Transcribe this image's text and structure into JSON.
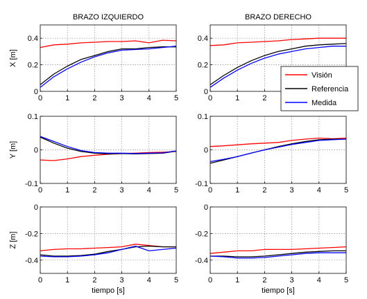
{
  "chart_data": {
    "type": "line",
    "xlim": [
      0,
      5
    ],
    "xticks": [
      "0",
      "1",
      "2",
      "3",
      "4",
      "5"
    ],
    "grid": true,
    "legend": {
      "placement": "inside right, upper-right panel (BRAZO DERECHO, X)",
      "entries": [
        {
          "label": "Visión",
          "color": "#ff0000"
        },
        {
          "label": "Referencia",
          "color": "#000000"
        },
        {
          "label": "Medida",
          "color": "#0000ff"
        }
      ]
    },
    "columns": [
      {
        "title": "BRAZO IZQUIERDO"
      },
      {
        "title": "BRAZO DERECHO"
      }
    ],
    "rows": [
      {
        "ylabel": "X [m]",
        "ylim": [
          0,
          0.5
        ],
        "yticks": [
          0,
          0.2,
          0.4
        ],
        "ytick_labels": [
          "0",
          "0.2",
          "0.4"
        ]
      },
      {
        "ylabel": "Y [m]",
        "ylim": [
          -0.1,
          0.1
        ],
        "yticks": [
          -0.1,
          0,
          0.1
        ],
        "ytick_labels": [
          "-0.1",
          "0",
          "0.1"
        ]
      },
      {
        "ylabel": "Z [m]",
        "ylim": [
          -0.5,
          0
        ],
        "yticks": [
          -0.4,
          -0.2,
          0
        ],
        "ytick_labels": [
          "-0.4",
          "-0.2",
          "0"
        ]
      }
    ],
    "xlabel": "tiempo [s]",
    "x": [
      0,
      0.5,
      1,
      1.5,
      2,
      2.5,
      3,
      3.5,
      4,
      4.5,
      5
    ],
    "panels": [
      {
        "row": 0,
        "col": 0,
        "series": [
          {
            "legend_index": 0,
            "values": [
              0.33,
              0.35,
              0.355,
              0.365,
              0.37,
              0.375,
              0.375,
              0.38,
              0.365,
              0.385,
              0.38
            ]
          },
          {
            "legend_index": 1,
            "values": [
              0.05,
              0.13,
              0.19,
              0.24,
              0.27,
              0.3,
              0.32,
              0.32,
              0.33,
              0.335,
              0.335
            ]
          },
          {
            "legend_index": 2,
            "values": [
              0.03,
              0.11,
              0.17,
              0.22,
              0.26,
              0.29,
              0.31,
              0.315,
              0.32,
              0.33,
              0.34
            ]
          }
        ]
      },
      {
        "row": 0,
        "col": 1,
        "series": [
          {
            "legend_index": 0,
            "values": [
              0.345,
              0.35,
              0.365,
              0.37,
              0.375,
              0.38,
              0.39,
              0.395,
              0.4,
              0.4,
              0.4
            ]
          },
          {
            "legend_index": 1,
            "values": [
              0.05,
              0.12,
              0.18,
              0.23,
              0.27,
              0.3,
              0.32,
              0.34,
              0.35,
              0.355,
              0.36
            ]
          },
          {
            "legend_index": 2,
            "values": [
              0.03,
              0.1,
              0.16,
              0.21,
              0.25,
              0.28,
              0.3,
              0.32,
              0.33,
              0.34,
              0.34
            ]
          }
        ]
      },
      {
        "row": 1,
        "col": 0,
        "series": [
          {
            "legend_index": 0,
            "values": [
              -0.03,
              -0.032,
              -0.027,
              -0.02,
              -0.016,
              -0.013,
              -0.011,
              -0.01,
              -0.008,
              -0.007,
              -0.005
            ]
          },
          {
            "legend_index": 1,
            "values": [
              0.038,
              0.02,
              0.005,
              -0.005,
              -0.01,
              -0.012,
              -0.011,
              -0.012,
              -0.011,
              -0.01,
              -0.004
            ]
          },
          {
            "legend_index": 2,
            "values": [
              0.04,
              0.025,
              0.01,
              -0.002,
              -0.008,
              -0.01,
              -0.01,
              -0.011,
              -0.01,
              -0.009,
              -0.003
            ]
          }
        ]
      },
      {
        "row": 1,
        "col": 1,
        "series": [
          {
            "legend_index": 0,
            "values": [
              0.01,
              0.012,
              0.015,
              0.018,
              0.02,
              0.022,
              0.028,
              0.032,
              0.035,
              0.033,
              0.035
            ]
          },
          {
            "legend_index": 1,
            "values": [
              -0.04,
              -0.03,
              -0.02,
              -0.01,
              0.0,
              0.01,
              0.018,
              0.025,
              0.03,
              0.032,
              0.032
            ]
          },
          {
            "legend_index": 2,
            "values": [
              -0.035,
              -0.028,
              -0.02,
              -0.01,
              0.0,
              0.008,
              0.016,
              0.022,
              0.028,
              0.03,
              0.032
            ]
          }
        ]
      },
      {
        "row": 2,
        "col": 0,
        "series": [
          {
            "legend_index": 0,
            "values": [
              -0.33,
              -0.32,
              -0.315,
              -0.315,
              -0.31,
              -0.305,
              -0.3,
              -0.28,
              -0.29,
              -0.3,
              -0.3
            ]
          },
          {
            "legend_index": 1,
            "values": [
              -0.36,
              -0.37,
              -0.37,
              -0.365,
              -0.355,
              -0.335,
              -0.32,
              -0.3,
              -0.295,
              -0.3,
              -0.3
            ]
          },
          {
            "legend_index": 2,
            "values": [
              -0.37,
              -0.375,
              -0.375,
              -0.37,
              -0.36,
              -0.345,
              -0.32,
              -0.295,
              -0.33,
              -0.32,
              -0.31
            ]
          }
        ]
      },
      {
        "row": 2,
        "col": 1,
        "series": [
          {
            "legend_index": 0,
            "values": [
              -0.35,
              -0.34,
              -0.33,
              -0.33,
              -0.32,
              -0.32,
              -0.32,
              -0.315,
              -0.31,
              -0.305,
              -0.3
            ]
          },
          {
            "legend_index": 1,
            "values": [
              -0.37,
              -0.37,
              -0.375,
              -0.375,
              -0.37,
              -0.36,
              -0.35,
              -0.34,
              -0.335,
              -0.33,
              -0.33
            ]
          },
          {
            "legend_index": 2,
            "values": [
              -0.37,
              -0.375,
              -0.385,
              -0.385,
              -0.38,
              -0.37,
              -0.36,
              -0.35,
              -0.345,
              -0.345,
              -0.345
            ]
          }
        ]
      }
    ]
  }
}
